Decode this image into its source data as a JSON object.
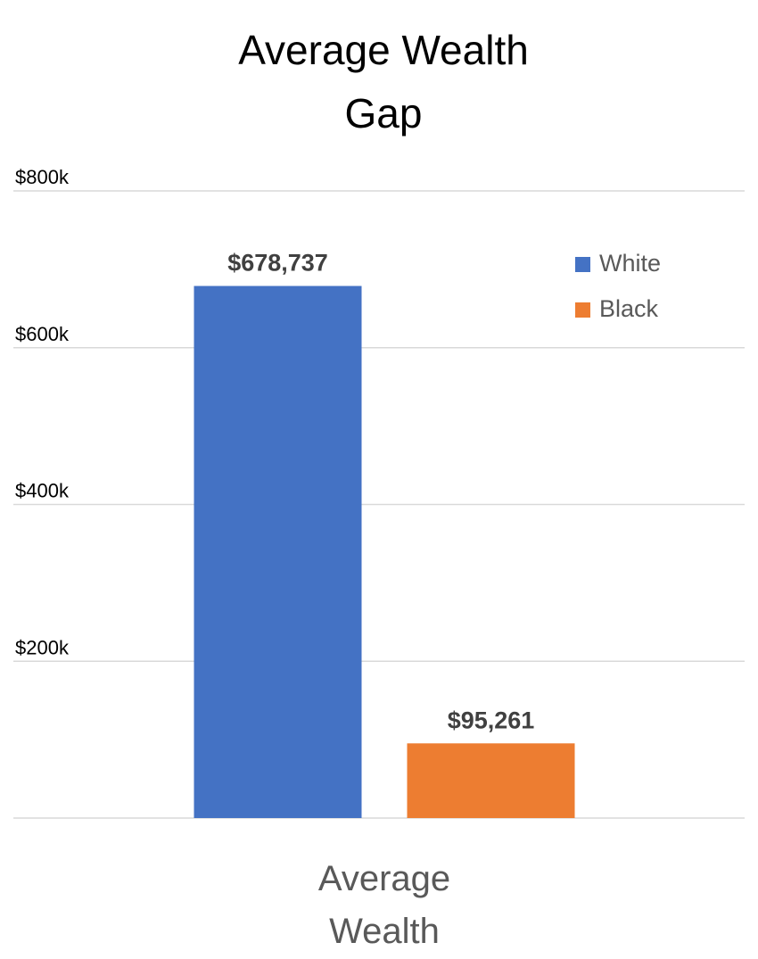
{
  "chart_data": {
    "type": "bar",
    "title_lines": [
      "Average Wealth",
      "Gap"
    ],
    "categories": [
      "Average Wealth"
    ],
    "category_label_lines": [
      "Average",
      "Wealth"
    ],
    "series": [
      {
        "name": "White",
        "values": [
          678737
        ],
        "label": "$678,737",
        "color": "#4472c4"
      },
      {
        "name": "Black",
        "values": [
          95261
        ],
        "label": "$95,261",
        "color": "#ed7d31"
      }
    ],
    "ylim": [
      0,
      800000
    ],
    "yticks": [
      {
        "value": 200000,
        "label": "$200k"
      },
      {
        "value": 400000,
        "label": "$400k"
      },
      {
        "value": 600000,
        "label": "$600k"
      },
      {
        "value": 800000,
        "label": "$800k"
      }
    ],
    "xlabel": "",
    "ylabel": "",
    "grid": true,
    "legend_position": "top-right"
  }
}
